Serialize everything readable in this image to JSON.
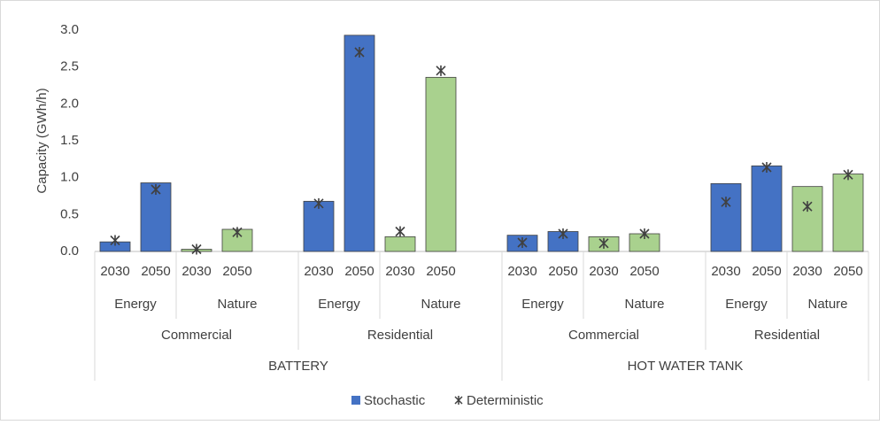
{
  "chart_data": {
    "type": "bar",
    "y_label": "Capacity (GWh/h)",
    "categories": [
      "2030",
      "2050",
      "2030",
      "2050",
      null,
      "2030",
      "2050",
      "2030",
      "2050",
      null,
      "2030",
      "2050",
      "2030",
      "2050",
      null,
      "2030",
      "2050",
      "2030",
      "2050"
    ],
    "levels": [
      [
        {
          "label": "Energy",
          "count": 2
        },
        {
          "label": "Nature",
          "count": 3
        },
        {
          "label": "Energy",
          "count": 2
        },
        {
          "label": "Nature",
          "count": 3
        },
        {
          "label": "Energy",
          "count": 2
        },
        {
          "label": "Nature",
          "count": 3
        },
        {
          "label": "Energy",
          "count": 2
        },
        {
          "label": "Nature",
          "count": 2
        }
      ],
      [
        {
          "label": "Commercial",
          "count": 5
        },
        {
          "label": "Residential",
          "count": 5
        },
        {
          "label": "Commercial",
          "count": 5
        },
        {
          "label": "Residential",
          "count": 4
        }
      ],
      [
        {
          "label": "BATTERY",
          "count": 10
        },
        {
          "label": "HOT WATER TANK",
          "count": 9
        }
      ]
    ],
    "series": [
      {
        "name": "Stochastic",
        "color": "#4472c4",
        "marker": "bar",
        "colors": [
          "#4472c4",
          "#4472c4",
          "#a9d18e",
          "#a9d18e",
          null,
          "#4472c4",
          "#4472c4",
          "#a9d18e",
          "#a9d18e",
          null,
          "#4472c4",
          "#4472c4",
          "#a9d18e",
          "#a9d18e",
          null,
          "#4472c4",
          "#4472c4",
          "#a9d18e",
          "#a9d18e"
        ],
        "values": [
          0.13,
          0.93,
          0.03,
          0.3,
          null,
          0.68,
          2.93,
          0.2,
          2.36,
          null,
          0.22,
          0.27,
          0.2,
          0.24,
          null,
          0.92,
          1.16,
          0.88,
          1.05
        ]
      },
      {
        "name": "Deterministic",
        "color": "#404040",
        "marker": "asterisk",
        "values": [
          0.15,
          0.84,
          0.03,
          0.26,
          null,
          0.65,
          2.7,
          0.27,
          2.45,
          null,
          0.12,
          0.24,
          0.11,
          0.24,
          null,
          0.67,
          1.14,
          0.61,
          1.04
        ]
      }
    ],
    "ylim": [
      0,
      3
    ],
    "yticks": [
      {
        "value": 0,
        "label": "0.0"
      },
      0.5,
      {
        "value": 1,
        "label": "1.0"
      },
      1.5,
      {
        "value": 2,
        "label": "2.0"
      },
      2.5,
      {
        "value": 3,
        "label": "3.0"
      }
    ],
    "grid": false
  }
}
